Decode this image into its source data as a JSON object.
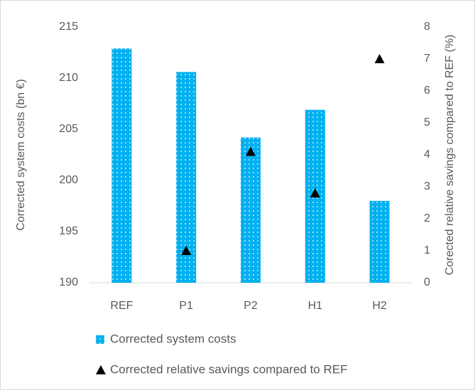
{
  "chart_data": {
    "type": "bar",
    "categories": [
      "REF",
      "P1",
      "P2",
      "H1",
      "H2"
    ],
    "series": [
      {
        "name": "Corrected system costs",
        "color": "#00b0f0",
        "values": [
          212.9,
          210.6,
          204.2,
          206.9,
          198.0
        ]
      },
      {
        "name": "Corrected relative savings compared to REF",
        "color": "#000000",
        "axis": "y2",
        "values": [
          null,
          1.0,
          4.1,
          2.8,
          7.0
        ]
      }
    ],
    "y_label": "Corrected system costs (bn €)",
    "y2_label": "Corected relative savings compared to REF (%)",
    "ylim": [
      190,
      215
    ],
    "yticks": [
      190,
      195,
      200,
      205,
      210,
      215
    ],
    "y2lim": [
      0,
      8
    ],
    "y2ticks": [
      0,
      1,
      2,
      3,
      4,
      5,
      6,
      7,
      8
    ],
    "grid": false,
    "legend": "bottom"
  }
}
